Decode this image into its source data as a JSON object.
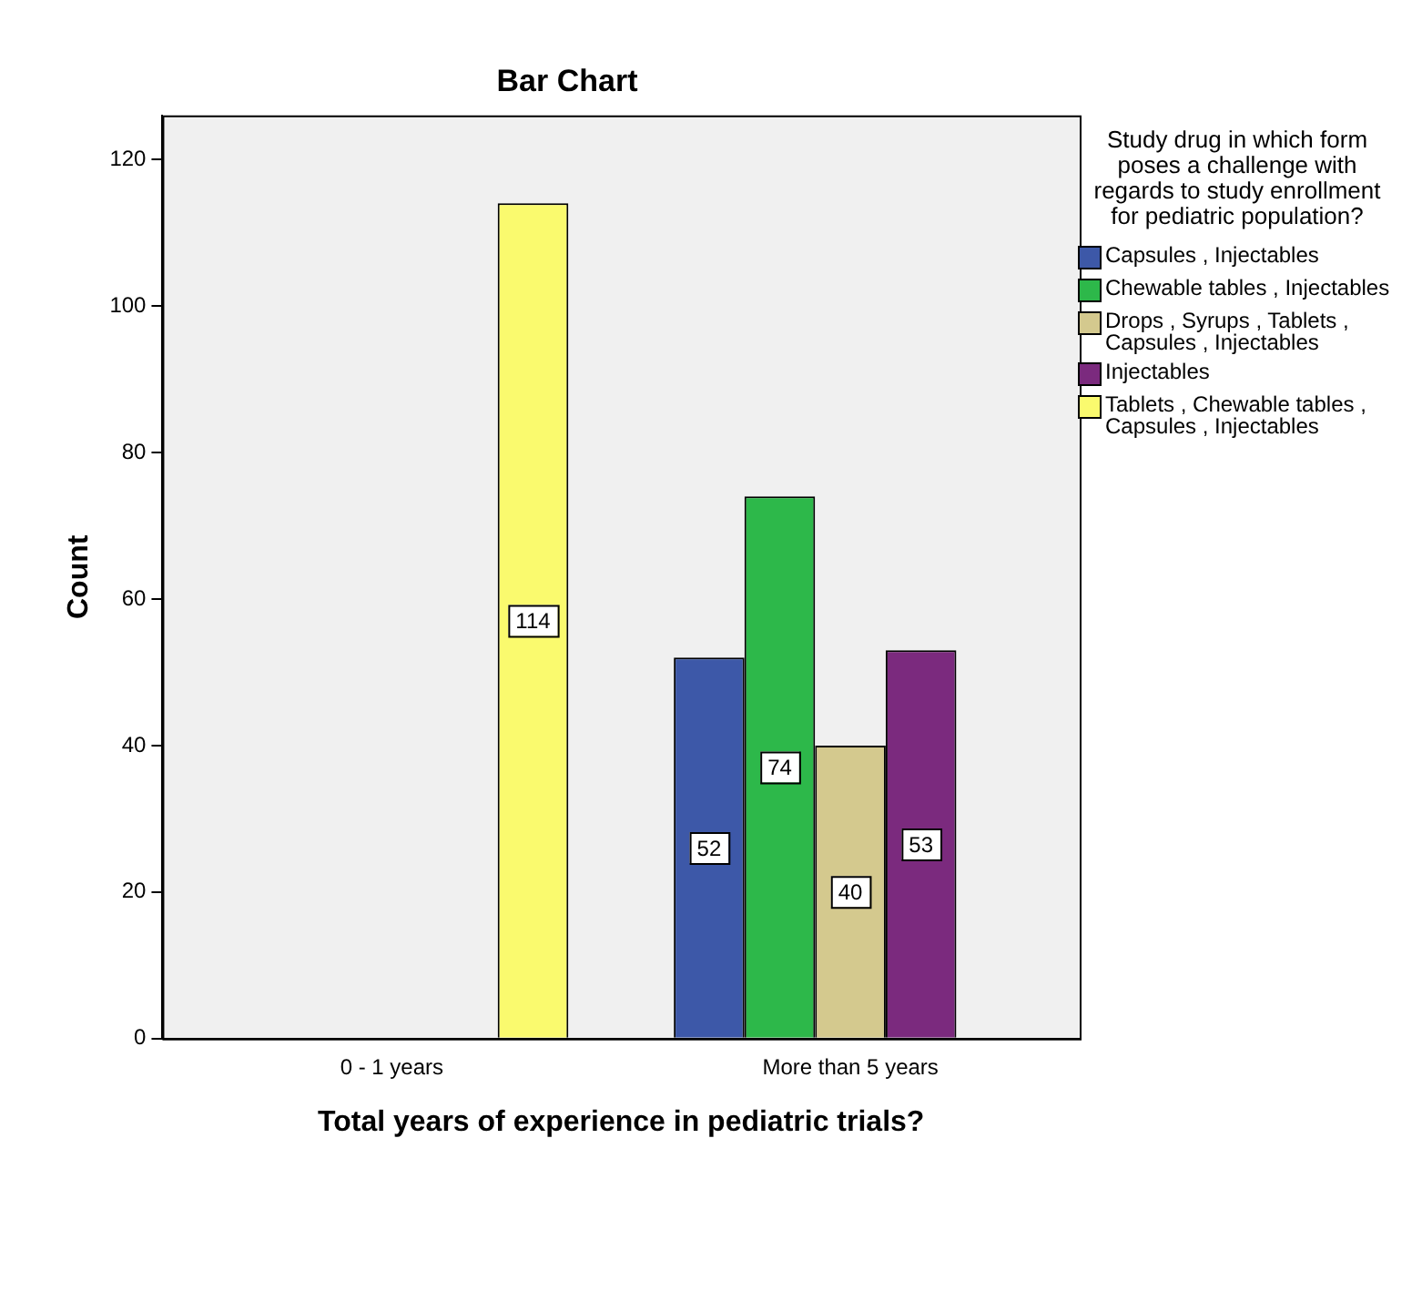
{
  "chart_data": {
    "type": "bar",
    "title": "Bar Chart",
    "xlabel": "Total years of experience in pediatric trials?",
    "ylabel": "Count",
    "legend_title": "Study drug in which form poses a challenge with regards to study enrollment for pediatric population?",
    "categories": [
      "0 - 1 years",
      "More than 5 years"
    ],
    "series": [
      {
        "name": "Capsules , Injectables",
        "color": "#3d58a8",
        "values": [
          null,
          52
        ]
      },
      {
        "name": "Chewable tables , Injectables",
        "color": "#2db84a",
        "values": [
          null,
          74
        ]
      },
      {
        "name": "Drops , Syrups , Tablets , Capsules , Injectables",
        "color": "#d4c98e",
        "values": [
          null,
          40
        ]
      },
      {
        "name": "Injectables",
        "color": "#7b2a7e",
        "values": [
          null,
          53
        ]
      },
      {
        "name": "Tablets , Chewable tables , Capsules , Injectables",
        "color": "#fafa6e",
        "values": [
          114,
          null
        ]
      }
    ],
    "ylim": [
      0,
      126
    ],
    "yticks": [
      0,
      20,
      40,
      60,
      80,
      100,
      120
    ],
    "grid": false,
    "legend": "right",
    "data_labels": true
  }
}
